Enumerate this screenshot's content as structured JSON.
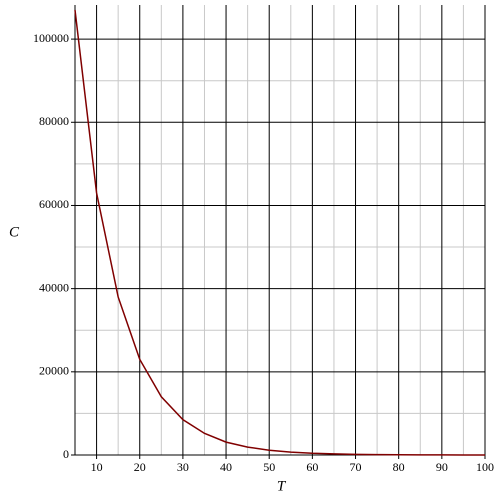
{
  "chart_data": {
    "type": "line",
    "x_label": "T",
    "y_label": "C",
    "x": [
      5,
      10,
      15,
      20,
      25,
      30,
      35,
      40,
      45,
      50,
      55,
      60,
      65,
      70,
      75,
      80,
      85,
      90,
      95,
      100
    ],
    "series": [
      {
        "color": "#800000",
        "values": [
          107000,
          63000,
          38000,
          23000,
          14000,
          8500,
          5200,
          3100,
          1900,
          1150,
          700,
          420,
          260,
          155,
          95,
          58,
          35,
          21,
          13,
          8
        ]
      }
    ],
    "xlim": [
      5,
      100
    ],
    "ylim": [
      0,
      108200
    ],
    "xticks": [
      10,
      20,
      30,
      40,
      50,
      60,
      70,
      80,
      90,
      100
    ],
    "yticks": [
      0,
      20000,
      40000,
      60000,
      80000,
      100000
    ],
    "grid": true
  }
}
